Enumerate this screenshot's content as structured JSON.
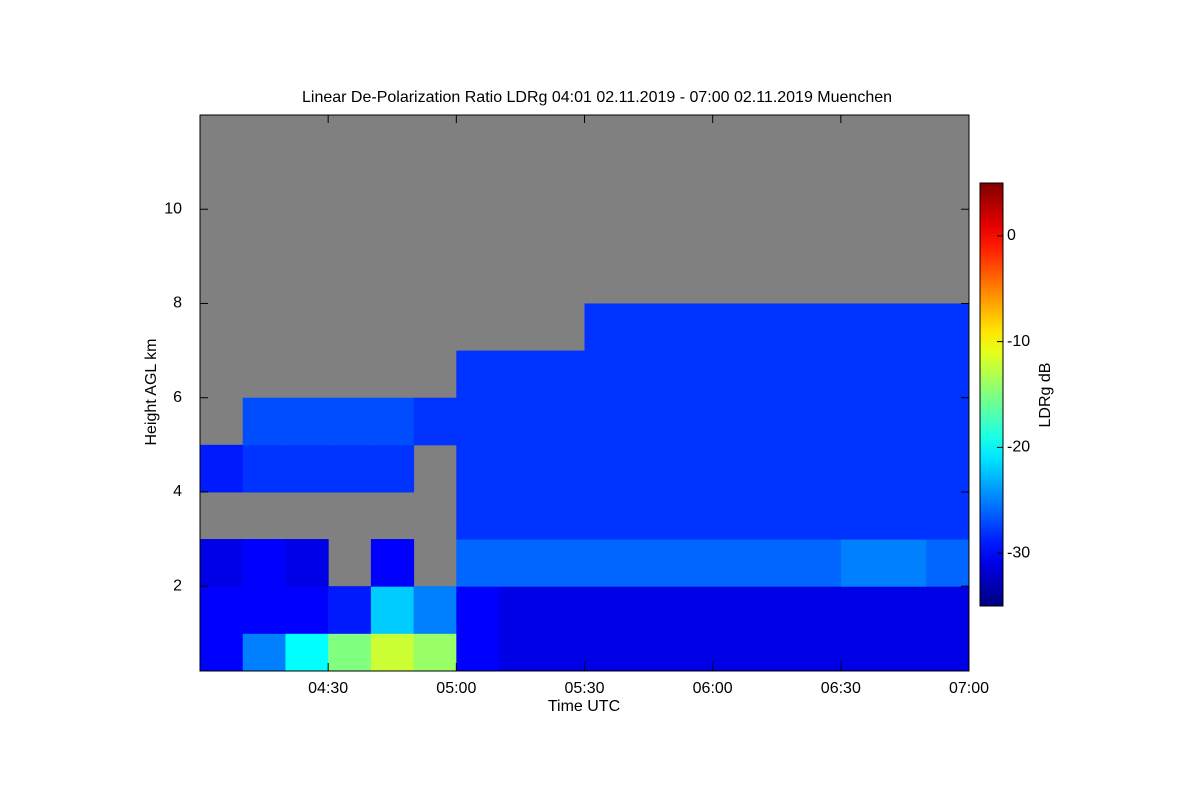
{
  "chart_data": {
    "type": "heatmap",
    "title": "Linear De-Polarization Ratio LDRg   04:01 02.11.2019 - 07:00 02.11.2019 Muenchen",
    "x_label": "Time UTC",
    "y_label": "Height AGL km",
    "colorbar_label": "LDRg dB",
    "colormap": "jet",
    "missing_color": "#808080",
    "xlim": [
      4.0,
      7.0
    ],
    "xticks": [
      {
        "value": 4.5,
        "label": "04:30"
      },
      {
        "value": 5.0,
        "label": "05:00"
      },
      {
        "value": 5.5,
        "label": "05:30"
      },
      {
        "value": 6.0,
        "label": "06:00"
      },
      {
        "value": 6.5,
        "label": "06:30"
      },
      {
        "value": 7.0,
        "label": "07:00"
      }
    ],
    "ylim": [
      0.2,
      12
    ],
    "yticks": [
      2,
      4,
      6,
      8,
      10
    ],
    "zlim": [
      -35,
      5
    ],
    "zticks": [
      -30,
      -20,
      -10,
      0
    ],
    "x_edges": [
      4.0,
      4.1667,
      4.3333,
      4.5,
      4.6667,
      4.8333,
      5.0,
      5.1667,
      5.3333,
      5.5,
      5.6667,
      5.8333,
      6.0,
      6.1667,
      6.3333,
      6.5,
      6.6667,
      6.8333,
      7.0
    ],
    "y_edges": [
      0.2,
      1,
      2,
      3,
      4,
      5,
      6,
      7,
      8,
      9,
      10,
      11,
      12
    ],
    "z": [
      [
        -30,
        -25,
        -20,
        -15,
        -12,
        -14,
        -30,
        -31,
        -31,
        -31,
        -31,
        -31,
        -31,
        -31,
        -31,
        -31,
        -31,
        -31
      ],
      [
        -30,
        -30,
        -30,
        -29,
        -22,
        -25,
        -30,
        -31,
        -31,
        -31,
        -31,
        -31,
        -31,
        -31,
        -31,
        -31,
        -31,
        -31
      ],
      [
        -31,
        -30,
        -31,
        null,
        -30,
        null,
        -26,
        -26,
        -26,
        -26,
        -26,
        -26,
        -26,
        -26,
        -26,
        -25,
        -25,
        -26
      ],
      [
        null,
        null,
        null,
        null,
        null,
        null,
        -28,
        -28,
        -28,
        -28,
        -28,
        -28,
        -28,
        -28,
        -28,
        -28,
        -28,
        -28
      ],
      [
        -29,
        -28,
        -28,
        -28,
        -28,
        null,
        -28,
        -28,
        -28,
        -28,
        -28,
        -28,
        -28,
        -28,
        -28,
        -28,
        -28,
        -28
      ],
      [
        null,
        -27,
        -27,
        -27,
        -27,
        -28,
        -28,
        -28,
        -28,
        -28,
        -28,
        -28,
        -28,
        -28,
        -28,
        -28,
        -28,
        -28
      ],
      [
        null,
        null,
        null,
        null,
        null,
        null,
        -28,
        -28,
        -28,
        -28,
        -28,
        -28,
        -28,
        -28,
        -28,
        -28,
        -28,
        -28
      ],
      [
        null,
        null,
        null,
        null,
        null,
        null,
        null,
        null,
        null,
        -28,
        -28,
        -28,
        -28,
        -28,
        -28,
        -28,
        -28,
        -28
      ],
      [
        null,
        null,
        null,
        null,
        null,
        null,
        null,
        null,
        null,
        null,
        null,
        null,
        null,
        null,
        null,
        null,
        null,
        null
      ],
      [
        null,
        null,
        null,
        null,
        null,
        null,
        null,
        null,
        null,
        null,
        null,
        null,
        null,
        null,
        null,
        null,
        null,
        null
      ],
      [
        null,
        null,
        null,
        null,
        null,
        null,
        null,
        null,
        null,
        null,
        null,
        null,
        null,
        null,
        null,
        null,
        null,
        null
      ],
      [
        null,
        null,
        null,
        null,
        null,
        null,
        null,
        null,
        null,
        null,
        null,
        null,
        null,
        null,
        null,
        null,
        null,
        null
      ]
    ]
  }
}
